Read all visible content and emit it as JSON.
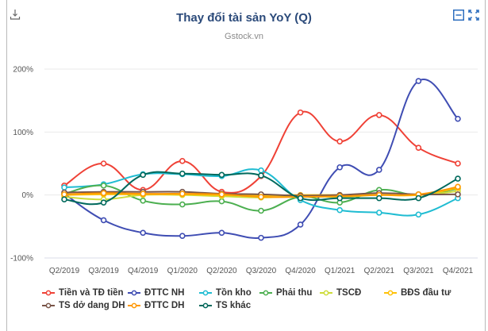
{
  "header": {
    "title": "Thay đổi tài sản YoY (Q)",
    "subtitle": "Gstock.vn",
    "download_icon": "download-icon",
    "minimize_icon": "minimize-icon",
    "fullscreen_icon": "fullscreen-icon"
  },
  "chart_data": {
    "type": "line",
    "title": "Thay đổi tài sản YoY (Q)",
    "subtitle": "Gstock.vn",
    "xlabel": "",
    "ylabel": "",
    "ylim": [
      -100,
      200
    ],
    "yticks": [
      200,
      100,
      0,
      -100
    ],
    "ytick_labels": [
      "200%",
      "100%",
      "0%",
      "-100%"
    ],
    "grid": true,
    "legend_position": "bottom",
    "categories": [
      "Q2/2019",
      "Q3/2019",
      "Q4/2019",
      "Q1/2020",
      "Q2/2020",
      "Q3/2020",
      "Q4/2020",
      "Q1/2021",
      "Q2/2021",
      "Q3/2021",
      "Q4/2021"
    ],
    "series": [
      {
        "name": "Tiền và TĐ tiền",
        "color": "#ef4136",
        "values": [
          15,
          50,
          8,
          54,
          5,
          30,
          131,
          85,
          127,
          75,
          50
        ]
      },
      {
        "name": "ĐTTC NH",
        "color": "#3f4db3",
        "values": [
          2,
          -40,
          -60,
          -65,
          -60,
          -68,
          -47,
          44,
          40,
          181,
          121
        ]
      },
      {
        "name": "Tồn kho",
        "color": "#1fbcd2",
        "values": [
          12,
          17,
          33,
          33,
          30,
          39,
          -8,
          -24,
          -28,
          -31,
          -5
        ]
      },
      {
        "name": "Phải thu",
        "color": "#4caf50",
        "values": [
          2,
          15,
          -9,
          -15,
          -10,
          -25,
          -3,
          -12,
          8,
          0,
          10
        ]
      },
      {
        "name": "TSCĐ",
        "color": "#cddc39",
        "values": [
          -3,
          -7,
          0,
          0,
          -2,
          -4,
          -2,
          -3,
          0,
          0,
          6
        ]
      },
      {
        "name": "BĐS đầu tư",
        "color": "#ffc107",
        "values": [
          0,
          1,
          1,
          1,
          0,
          -1,
          0,
          0,
          0,
          0,
          11
        ]
      },
      {
        "name": "TS dở dang DH",
        "color": "#795548",
        "values": [
          4,
          5,
          5,
          5,
          2,
          1,
          -1,
          0,
          3,
          1,
          1
        ]
      },
      {
        "name": "ĐTTC DH",
        "color": "#ff9800",
        "values": [
          1,
          3,
          2,
          2,
          1,
          -3,
          -3,
          -2,
          0,
          1,
          13
        ]
      },
      {
        "name": "TS khác",
        "color": "#00695c",
        "values": [
          -7,
          -12,
          32,
          34,
          32,
          31,
          -5,
          -5,
          -5,
          -5,
          26
        ]
      }
    ]
  }
}
